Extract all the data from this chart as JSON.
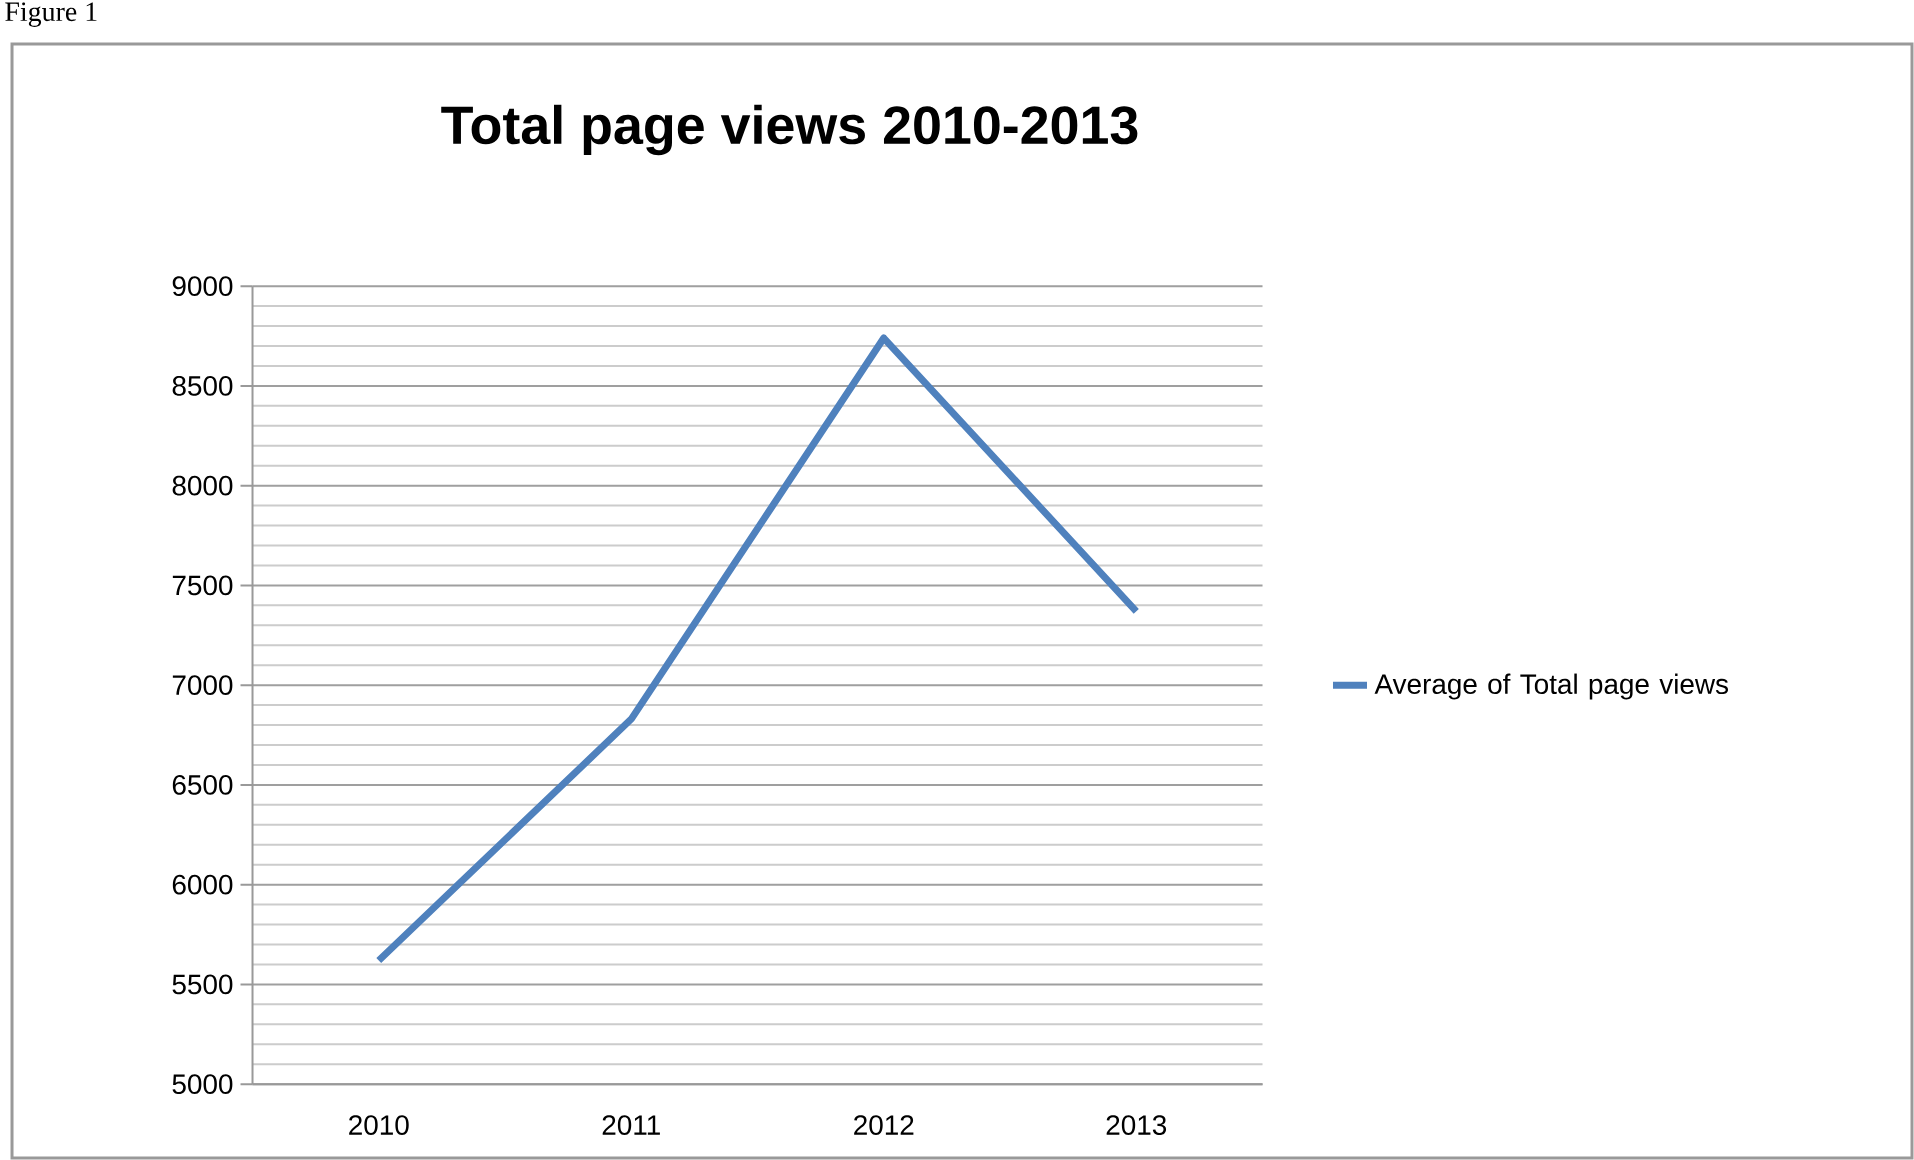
{
  "chart_data": {
    "type": "line",
    "title": "Total page views 2010-2013",
    "annotations": [
      "Figure 1"
    ],
    "categories": [
      "2010",
      "2011",
      "2012",
      "2013"
    ],
    "series": [
      {
        "name": "Average of Total page views",
        "color": "#4f81bd",
        "values": [
          5620,
          6830,
          8740,
          7370
        ]
      }
    ],
    "ylim": [
      5000,
      9000
    ],
    "yticks": [
      5000,
      5500,
      6000,
      6500,
      7000,
      7500,
      8000,
      8500,
      9000
    ],
    "grid": "y",
    "legend": "right",
    "marker": "none",
    "line_style": "solid"
  }
}
